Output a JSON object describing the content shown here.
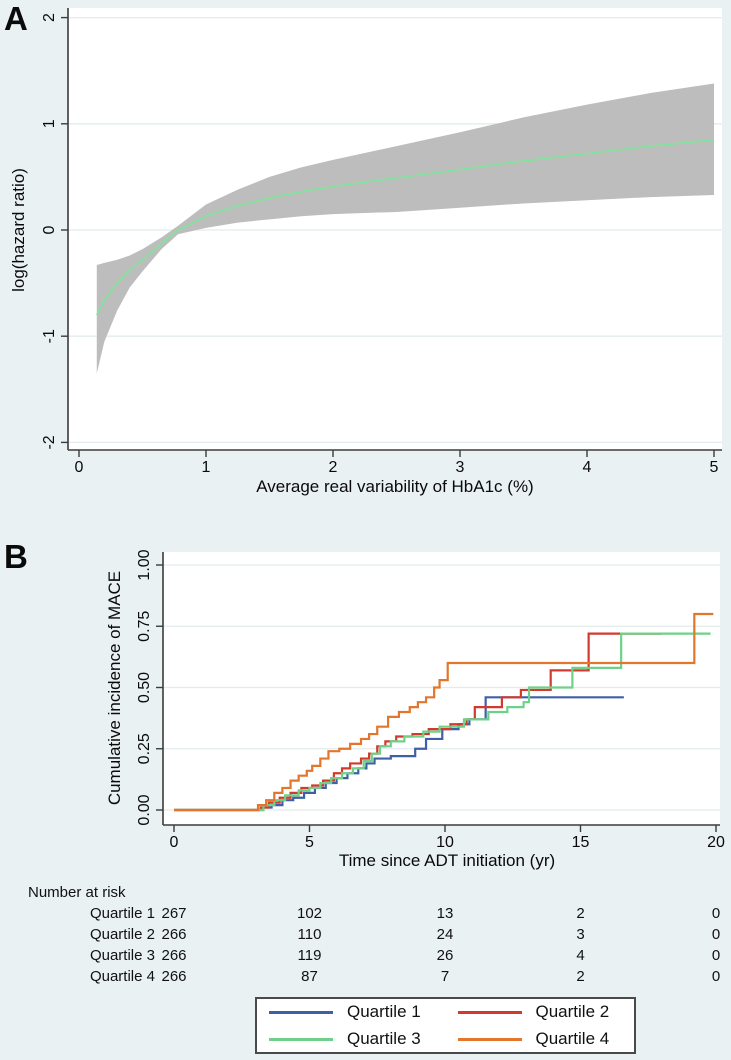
{
  "figure": {
    "panel_a_label": "A",
    "panel_b_label": "B",
    "background_color": "#e9f1f2",
    "plot_background_color": "#ffffff",
    "gridline_color": "#e2ecee",
    "axis_color": "#3c3c3c"
  },
  "chart_data": [
    {
      "type": "area",
      "panel": "A",
      "description": "Restricted cubic spline of log(hazard ratio) vs HbA1c variability with gray 95% CI band and green estimate line",
      "xlabel": "Average real variability of HbA1c (%)",
      "ylabel": "log(hazard ratio)",
      "xlim": [
        0,
        5.1
      ],
      "ylim": [
        -2.2,
        2.1
      ],
      "xticks": [
        0,
        1,
        2,
        3,
        4,
        5
      ],
      "yticks": [
        -2,
        -1,
        0,
        1,
        2
      ],
      "ytick_labels": [
        "-2",
        "-1",
        "0",
        "1",
        "2"
      ],
      "grid": true,
      "line_color": "#82e49c",
      "band_color": "#bdbdbd",
      "x": [
        0.14,
        0.2,
        0.3,
        0.4,
        0.5,
        0.65,
        0.78,
        1.0,
        1.25,
        1.5,
        1.75,
        2.0,
        2.5,
        3.0,
        3.5,
        4.0,
        4.5,
        5.0
      ],
      "estimate": [
        -0.8,
        -0.66,
        -0.5,
        -0.38,
        -0.28,
        -0.13,
        0.0,
        0.13,
        0.23,
        0.3,
        0.36,
        0.41,
        0.49,
        0.57,
        0.65,
        0.72,
        0.79,
        0.85
      ],
      "ci_upper": [
        -0.33,
        -0.31,
        -0.28,
        -0.24,
        -0.18,
        -0.07,
        0.04,
        0.24,
        0.38,
        0.5,
        0.59,
        0.66,
        0.79,
        0.92,
        1.06,
        1.18,
        1.29,
        1.38
      ],
      "ci_lower": [
        -1.35,
        -1.05,
        -0.76,
        -0.54,
        -0.39,
        -0.18,
        -0.04,
        0.02,
        0.07,
        0.1,
        0.13,
        0.15,
        0.17,
        0.21,
        0.25,
        0.28,
        0.31,
        0.33
      ]
    },
    {
      "type": "line",
      "panel": "B",
      "description": "Kaplan-Meier style cumulative incidence step curves by quartile",
      "xlabel": "Time since ADT initiation (yr)",
      "ylabel": "Cumulative incidence of MACE",
      "xlim": [
        0,
        20.2
      ],
      "ylim": [
        0,
        1.05
      ],
      "xticks": [
        0,
        5,
        10,
        15,
        20
      ],
      "yticks": [
        0,
        0.25,
        0.5,
        0.75,
        1
      ],
      "ytick_labels": [
        "0.00",
        "0.25",
        "0.50",
        "0.75",
        "1.00"
      ],
      "grid": true,
      "series": [
        {
          "name": "Quartile 1",
          "color": "#3f60a7",
          "points": [
            [
              0,
              0
            ],
            [
              3.3,
              0.01
            ],
            [
              3.6,
              0.02
            ],
            [
              4.0,
              0.04
            ],
            [
              4.4,
              0.05
            ],
            [
              4.8,
              0.07
            ],
            [
              5.2,
              0.09
            ],
            [
              5.6,
              0.11
            ],
            [
              6.0,
              0.13
            ],
            [
              6.4,
              0.15
            ],
            [
              6.8,
              0.17
            ],
            [
              7.1,
              0.19
            ],
            [
              7.4,
              0.21
            ],
            [
              8.0,
              0.22
            ],
            [
              8.9,
              0.25
            ],
            [
              9.3,
              0.29
            ],
            [
              9.9,
              0.33
            ],
            [
              10.5,
              0.35
            ],
            [
              10.9,
              0.37
            ],
            [
              11.5,
              0.46
            ],
            [
              16.6,
              0.46
            ]
          ]
        },
        {
          "name": "Quartile 2",
          "color": "#d23a2e",
          "points": [
            [
              0,
              0
            ],
            [
              3.2,
              0.01
            ],
            [
              3.5,
              0.03
            ],
            [
              3.9,
              0.05
            ],
            [
              4.3,
              0.07
            ],
            [
              4.7,
              0.09
            ],
            [
              5.1,
              0.1
            ],
            [
              5.5,
              0.12
            ],
            [
              5.9,
              0.15
            ],
            [
              6.2,
              0.17
            ],
            [
              6.5,
              0.19
            ],
            [
              6.9,
              0.21
            ],
            [
              7.2,
              0.23
            ],
            [
              7.5,
              0.26
            ],
            [
              7.8,
              0.28
            ],
            [
              8.2,
              0.3
            ],
            [
              8.8,
              0.31
            ],
            [
              9.4,
              0.33
            ],
            [
              10.2,
              0.35
            ],
            [
              10.8,
              0.37
            ],
            [
              11.1,
              0.42
            ],
            [
              12.1,
              0.46
            ],
            [
              12.8,
              0.49
            ],
            [
              13.9,
              0.57
            ],
            [
              15.3,
              0.72
            ],
            [
              18.0,
              0.72
            ]
          ]
        },
        {
          "name": "Quartile 3",
          "color": "#6fd189",
          "points": [
            [
              0,
              0
            ],
            [
              3.3,
              0.02
            ],
            [
              3.7,
              0.04
            ],
            [
              4.1,
              0.06
            ],
            [
              4.6,
              0.08
            ],
            [
              5.0,
              0.09
            ],
            [
              5.4,
              0.11
            ],
            [
              5.8,
              0.13
            ],
            [
              6.2,
              0.15
            ],
            [
              6.6,
              0.17
            ],
            [
              7.0,
              0.2
            ],
            [
              7.3,
              0.23
            ],
            [
              7.6,
              0.26
            ],
            [
              8.0,
              0.28
            ],
            [
              8.5,
              0.3
            ],
            [
              9.2,
              0.32
            ],
            [
              9.8,
              0.34
            ],
            [
              10.7,
              0.37
            ],
            [
              11.6,
              0.4
            ],
            [
              12.3,
              0.42
            ],
            [
              12.9,
              0.44
            ],
            [
              13.1,
              0.5
            ],
            [
              14.7,
              0.58
            ],
            [
              16.5,
              0.72
            ],
            [
              19.8,
              0.72
            ]
          ]
        },
        {
          "name": "Quartile 4",
          "color": "#e2762c",
          "points": [
            [
              0,
              0
            ],
            [
              3.1,
              0.02
            ],
            [
              3.4,
              0.04
            ],
            [
              3.7,
              0.07
            ],
            [
              4.0,
              0.09
            ],
            [
              4.3,
              0.12
            ],
            [
              4.6,
              0.14
            ],
            [
              4.9,
              0.16
            ],
            [
              5.1,
              0.18
            ],
            [
              5.4,
              0.21
            ],
            [
              5.7,
              0.24
            ],
            [
              6.1,
              0.25
            ],
            [
              6.5,
              0.27
            ],
            [
              6.9,
              0.29
            ],
            [
              7.2,
              0.31
            ],
            [
              7.5,
              0.34
            ],
            [
              7.9,
              0.38
            ],
            [
              8.3,
              0.4
            ],
            [
              8.7,
              0.42
            ],
            [
              9.0,
              0.44
            ],
            [
              9.3,
              0.46
            ],
            [
              9.6,
              0.5
            ],
            [
              9.8,
              0.53
            ],
            [
              10.1,
              0.6
            ],
            [
              19.1,
              0.6
            ],
            [
              19.2,
              0.8
            ],
            [
              19.9,
              0.8
            ]
          ]
        }
      ]
    }
  ],
  "risk_table": {
    "title": "Number at risk",
    "time_points": [
      0,
      5,
      10,
      15,
      20
    ],
    "rows": [
      {
        "label": "Quartile 1",
        "counts": [
          "267",
          "102",
          "13",
          "2",
          "0"
        ]
      },
      {
        "label": "Quartile 2",
        "counts": [
          "266",
          "110",
          "24",
          "3",
          "0"
        ]
      },
      {
        "label": "Quartile 3",
        "counts": [
          "266",
          "119",
          "26",
          "4",
          "0"
        ]
      },
      {
        "label": "Quartile 4",
        "counts": [
          "266",
          "87",
          "7",
          "2",
          "0"
        ]
      }
    ]
  },
  "legend": {
    "items": [
      {
        "label": "Quartile 1",
        "color": "#3f60a7"
      },
      {
        "label": "Quartile 2",
        "color": "#d23a2e"
      },
      {
        "label": "Quartile 3",
        "color": "#6fd189"
      },
      {
        "label": "Quartile 4",
        "color": "#e2762c"
      }
    ]
  }
}
